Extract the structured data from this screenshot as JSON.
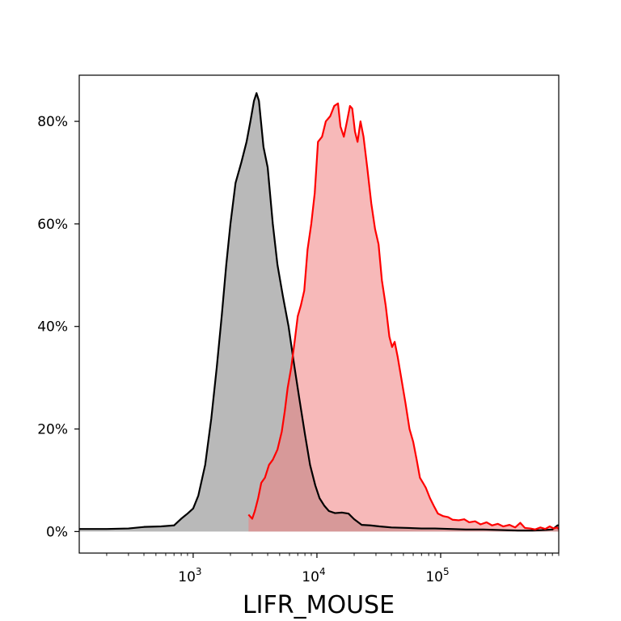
{
  "chart_data": {
    "type": "area",
    "xlabel": "LIFR_MOUSE",
    "ylabel": "",
    "x_scale": "log",
    "xlim": [
      120,
      900000
    ],
    "ylim": [
      -0.042,
      0.89
    ],
    "grid": false,
    "x_ticks": [
      {
        "value": 1000,
        "base": "10",
        "exp": "3"
      },
      {
        "value": 10000,
        "base": "10",
        "exp": "4"
      },
      {
        "value": 100000,
        "base": "10",
        "exp": "5"
      }
    ],
    "y_ticks": [
      {
        "value": 0.0,
        "label": "0%"
      },
      {
        "value": 0.2,
        "label": "20%"
      },
      {
        "value": 0.4,
        "label": "40%"
      },
      {
        "value": 0.6,
        "label": "60%"
      },
      {
        "value": 0.8,
        "label": "80%"
      }
    ],
    "series": [
      {
        "line_color": "#000000",
        "fill_color": "#808080",
        "points": [
          [
            120,
            0.005
          ],
          [
            200,
            0.005
          ],
          [
            300,
            0.006
          ],
          [
            400,
            0.009
          ],
          [
            550,
            0.01
          ],
          [
            700,
            0.012
          ],
          [
            800,
            0.025
          ],
          [
            900,
            0.035
          ],
          [
            1000,
            0.045
          ],
          [
            1100,
            0.07
          ],
          [
            1250,
            0.13
          ],
          [
            1400,
            0.22
          ],
          [
            1550,
            0.32
          ],
          [
            1700,
            0.42
          ],
          [
            1850,
            0.52
          ],
          [
            2000,
            0.6
          ],
          [
            2200,
            0.68
          ],
          [
            2450,
            0.72
          ],
          [
            2700,
            0.76
          ],
          [
            2900,
            0.8
          ],
          [
            3100,
            0.84
          ],
          [
            3250,
            0.855
          ],
          [
            3400,
            0.84
          ],
          [
            3700,
            0.75
          ],
          [
            4000,
            0.71
          ],
          [
            4400,
            0.6
          ],
          [
            4800,
            0.52
          ],
          [
            5300,
            0.46
          ],
          [
            5900,
            0.4
          ],
          [
            6500,
            0.33
          ],
          [
            7200,
            0.26
          ],
          [
            8000,
            0.19
          ],
          [
            8800,
            0.13
          ],
          [
            9700,
            0.09
          ],
          [
            10500,
            0.065
          ],
          [
            11500,
            0.05
          ],
          [
            12500,
            0.04
          ],
          [
            14000,
            0.036
          ],
          [
            16000,
            0.037
          ],
          [
            18000,
            0.035
          ],
          [
            20000,
            0.024
          ],
          [
            23000,
            0.013
          ],
          [
            27000,
            0.012
          ],
          [
            32000,
            0.01
          ],
          [
            40000,
            0.008
          ],
          [
            55000,
            0.007
          ],
          [
            70000,
            0.006
          ],
          [
            90000,
            0.006
          ],
          [
            120000,
            0.005
          ],
          [
            160000,
            0.004
          ],
          [
            220000,
            0.004
          ],
          [
            300000,
            0.003
          ],
          [
            420000,
            0.002
          ],
          [
            550000,
            0.002
          ],
          [
            700000,
            0.003
          ],
          [
            800000,
            0.004
          ],
          [
            880000,
            0.012
          ],
          [
            900000,
            0.012
          ]
        ]
      },
      {
        "line_color": "#ff0000",
        "fill_color": "#f08080",
        "points": [
          [
            2800,
            0.033
          ],
          [
            3000,
            0.025
          ],
          [
            3150,
            0.04
          ],
          [
            3350,
            0.065
          ],
          [
            3550,
            0.095
          ],
          [
            3800,
            0.105
          ],
          [
            4100,
            0.13
          ],
          [
            4400,
            0.14
          ],
          [
            4800,
            0.16
          ],
          [
            5200,
            0.195
          ],
          [
            5500,
            0.235
          ],
          [
            5800,
            0.28
          ],
          [
            6200,
            0.32
          ],
          [
            6600,
            0.37
          ],
          [
            7000,
            0.42
          ],
          [
            7400,
            0.44
          ],
          [
            7900,
            0.47
          ],
          [
            8400,
            0.55
          ],
          [
            9000,
            0.6
          ],
          [
            9600,
            0.66
          ],
          [
            10200,
            0.76
          ],
          [
            11000,
            0.77
          ],
          [
            11800,
            0.8
          ],
          [
            12800,
            0.81
          ],
          [
            13800,
            0.83
          ],
          [
            14800,
            0.835
          ],
          [
            15500,
            0.79
          ],
          [
            16500,
            0.77
          ],
          [
            17500,
            0.8
          ],
          [
            18500,
            0.83
          ],
          [
            19300,
            0.825
          ],
          [
            20300,
            0.78
          ],
          [
            21300,
            0.76
          ],
          [
            22500,
            0.8
          ],
          [
            23800,
            0.77
          ],
          [
            25500,
            0.71
          ],
          [
            27500,
            0.64
          ],
          [
            29500,
            0.59
          ],
          [
            31500,
            0.56
          ],
          [
            33500,
            0.49
          ],
          [
            36000,
            0.44
          ],
          [
            38500,
            0.38
          ],
          [
            40500,
            0.36
          ],
          [
            42500,
            0.37
          ],
          [
            45000,
            0.34
          ],
          [
            48000,
            0.3
          ],
          [
            52000,
            0.25
          ],
          [
            56000,
            0.2
          ],
          [
            60000,
            0.175
          ],
          [
            64000,
            0.14
          ],
          [
            68000,
            0.105
          ],
          [
            72000,
            0.095
          ],
          [
            76000,
            0.085
          ],
          [
            82000,
            0.065
          ],
          [
            88000,
            0.05
          ],
          [
            95000,
            0.035
          ],
          [
            105000,
            0.03
          ],
          [
            115000,
            0.028
          ],
          [
            125000,
            0.023
          ],
          [
            140000,
            0.022
          ],
          [
            155000,
            0.024
          ],
          [
            170000,
            0.018
          ],
          [
            190000,
            0.02
          ],
          [
            210000,
            0.014
          ],
          [
            235000,
            0.018
          ],
          [
            260000,
            0.012
          ],
          [
            290000,
            0.015
          ],
          [
            320000,
            0.01
          ],
          [
            360000,
            0.013
          ],
          [
            400000,
            0.008
          ],
          [
            440000,
            0.017
          ],
          [
            480000,
            0.007
          ],
          [
            530000,
            0.006
          ],
          [
            580000,
            0.004
          ],
          [
            640000,
            0.008
          ],
          [
            700000,
            0.005
          ],
          [
            760000,
            0.01
          ],
          [
            820000,
            0.006
          ],
          [
            870000,
            0.008
          ],
          [
            900000,
            0.005
          ]
        ]
      }
    ]
  }
}
